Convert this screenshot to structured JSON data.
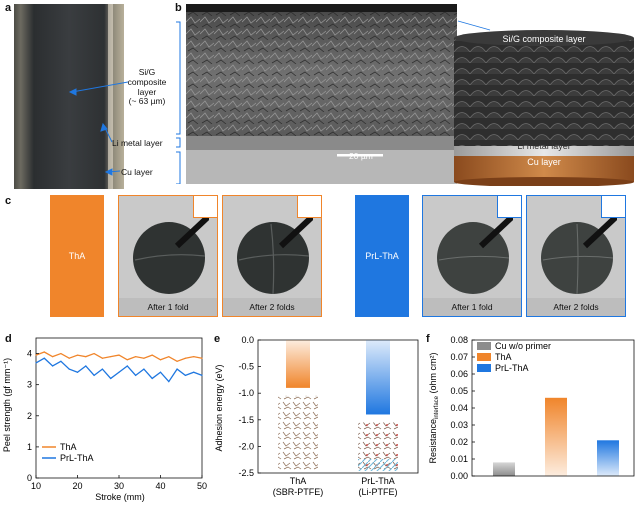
{
  "panels": {
    "a": "a",
    "b": "b",
    "c": "c",
    "d": "d",
    "e": "e",
    "f": "f"
  },
  "panel_a": {
    "composite": "Si/G\ncomposite\nlayer\n(~ 63 µm)",
    "li_metal": "Li metal layer",
    "cu": "Cu layer"
  },
  "panel_b": {
    "scale": "20 µm",
    "composite": "Si/G composite layer",
    "li_metal": "Li metal layer",
    "cu": "Cu layer"
  },
  "panel_c": {
    "tha": "ThA",
    "prl_tha": "PrL-ThA",
    "fold1": "After 1 fold",
    "fold2": "After 2 folds",
    "colors": {
      "tha": "#f0852b",
      "prl_tha": "#1f77e0"
    }
  },
  "chart_data": [
    {
      "type": "line",
      "xlabel": "Stroke (mm)",
      "ylabel": "Peel strength (gf mm⁻¹)",
      "xlim": [
        10,
        50
      ],
      "ylim": [
        0,
        4.5
      ],
      "xticks": [
        10,
        20,
        30,
        40,
        50
      ],
      "yticks": [
        0,
        1,
        2,
        3,
        4
      ],
      "legend": "bottom-left",
      "series": [
        {
          "name": "ThA",
          "color": "#f0852b",
          "x": [
            10,
            12,
            14,
            16,
            18,
            20,
            22,
            24,
            26,
            28,
            30,
            32,
            34,
            36,
            38,
            40,
            42,
            44,
            46,
            48,
            50
          ],
          "y": [
            3.95,
            4.05,
            3.9,
            4.0,
            3.85,
            3.95,
            3.9,
            4.0,
            3.85,
            3.9,
            3.95,
            3.8,
            3.9,
            3.85,
            3.95,
            3.8,
            3.9,
            3.75,
            3.85,
            3.9,
            3.85
          ]
        },
        {
          "name": "PrL-ThA",
          "color": "#1f77e0",
          "x": [
            10,
            12,
            14,
            16,
            18,
            20,
            22,
            24,
            26,
            28,
            30,
            32,
            34,
            36,
            38,
            40,
            42,
            44,
            46,
            48,
            50
          ],
          "y": [
            3.7,
            3.85,
            3.6,
            3.75,
            3.5,
            3.4,
            3.6,
            3.3,
            3.5,
            3.2,
            3.4,
            3.6,
            3.3,
            3.5,
            3.2,
            3.4,
            3.1,
            3.5,
            3.3,
            3.4,
            3.3
          ]
        }
      ]
    },
    {
      "type": "bar",
      "ylabel": "Adhesion energy (eV)",
      "ylim": [
        -2.5,
        0
      ],
      "yticks": [
        0.0,
        -0.5,
        -1.0,
        -1.5,
        -2.0,
        -2.5
      ],
      "categories": [
        "ThA\n(SBR-PTFE)",
        "PrL-ThA\n(Li-PTFE)"
      ],
      "values": [
        -0.9,
        -1.4
      ],
      "colors": [
        "#f0852b",
        "#1f77e0"
      ]
    },
    {
      "type": "bar",
      "ylabel": "Resistance",
      "ylabel_sub": "interface",
      "ylabel_unit": " (ohm cm²)",
      "ylim": [
        0,
        0.08
      ],
      "yticks": [
        0.0,
        0.01,
        0.02,
        0.03,
        0.04,
        0.05,
        0.06,
        0.07,
        0.08
      ],
      "legend": "top-left",
      "categories": [
        "Cu w/o primer",
        "ThA",
        "PrL-ThA"
      ],
      "values": [
        0.008,
        0.046,
        0.021
      ],
      "colors": [
        "#8c8c8c",
        "#f0852b",
        "#1f77e0"
      ]
    }
  ]
}
